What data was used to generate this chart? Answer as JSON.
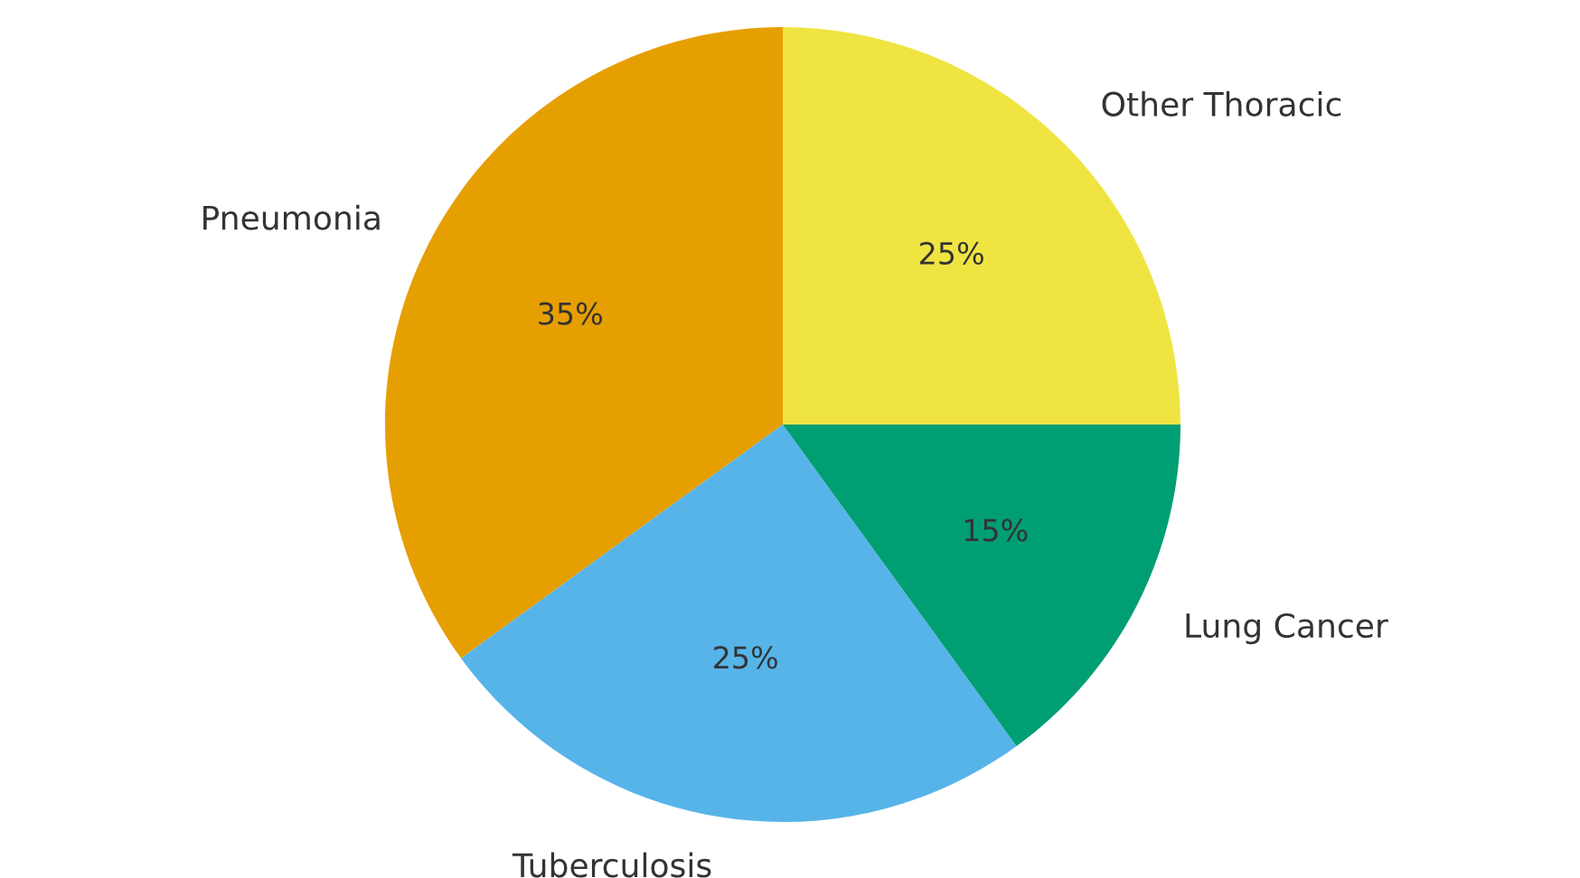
{
  "chart_data": {
    "type": "pie",
    "categories": [
      "Pneumonia",
      "Tuberculosis",
      "Lung Cancer",
      "Other Thoracic"
    ],
    "values": [
      35,
      25,
      15,
      25
    ],
    "value_labels": [
      "35%",
      "25%",
      "15%",
      "25%"
    ],
    "colors": [
      "#e69f00",
      "#56b4e9",
      "#009e73",
      "#f0e442"
    ]
  }
}
